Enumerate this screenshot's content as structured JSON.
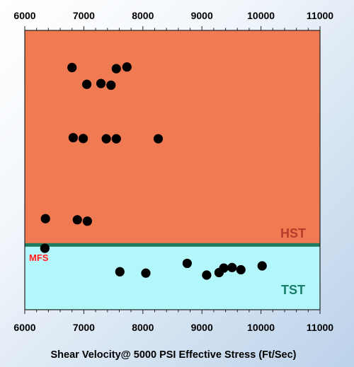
{
  "chart_data": {
    "type": "scatter",
    "xlabel": "Shear Velocity@ 5000 PSI Effective Stress (Ft/Sec)",
    "ylabel": "",
    "xlim": [
      6000,
      11000
    ],
    "xticks": [
      6000,
      7000,
      8000,
      9000,
      10000,
      11000
    ],
    "xtick_labels": [
      "6000",
      "7000",
      "8000",
      "9000",
      "10000",
      "11000"
    ],
    "ticks_top_and_bottom": true,
    "y_axis": "unlabeled relative position (0 = bottom, 1 = top)",
    "grid": false,
    "legend": "none",
    "zones": [
      {
        "label": "HST",
        "color": "#f07a52",
        "label_color": "#b83c2a",
        "y_from": 0.232,
        "y_to": 1.0
      },
      {
        "label": "TST",
        "color": "#b4f7fa",
        "label_color": "#1a7e6a",
        "y_from": 0.0,
        "y_to": 0.232
      }
    ],
    "boundary": {
      "label": "MFS",
      "y": 0.232,
      "line_color": "#1f7a5e",
      "label_color": "#ff1a1a"
    },
    "marker_color": "#000000",
    "points": [
      {
        "x": 6800,
        "y": 0.867
      },
      {
        "x": 7050,
        "y": 0.807
      },
      {
        "x": 7290,
        "y": 0.81
      },
      {
        "x": 7460,
        "y": 0.804
      },
      {
        "x": 7550,
        "y": 0.863
      },
      {
        "x": 7730,
        "y": 0.869
      },
      {
        "x": 6820,
        "y": 0.616
      },
      {
        "x": 6990,
        "y": 0.613
      },
      {
        "x": 7380,
        "y": 0.612
      },
      {
        "x": 7550,
        "y": 0.612
      },
      {
        "x": 8260,
        "y": 0.612
      },
      {
        "x": 6350,
        "y": 0.326
      },
      {
        "x": 6890,
        "y": 0.322
      },
      {
        "x": 7060,
        "y": 0.317
      },
      {
        "x": 6340,
        "y": 0.22
      },
      {
        "x": 7610,
        "y": 0.136
      },
      {
        "x": 8050,
        "y": 0.131
      },
      {
        "x": 8750,
        "y": 0.166
      },
      {
        "x": 9080,
        "y": 0.124
      },
      {
        "x": 9290,
        "y": 0.133
      },
      {
        "x": 9370,
        "y": 0.149
      },
      {
        "x": 9510,
        "y": 0.151
      },
      {
        "x": 9660,
        "y": 0.143
      },
      {
        "x": 10020,
        "y": 0.157
      }
    ]
  }
}
